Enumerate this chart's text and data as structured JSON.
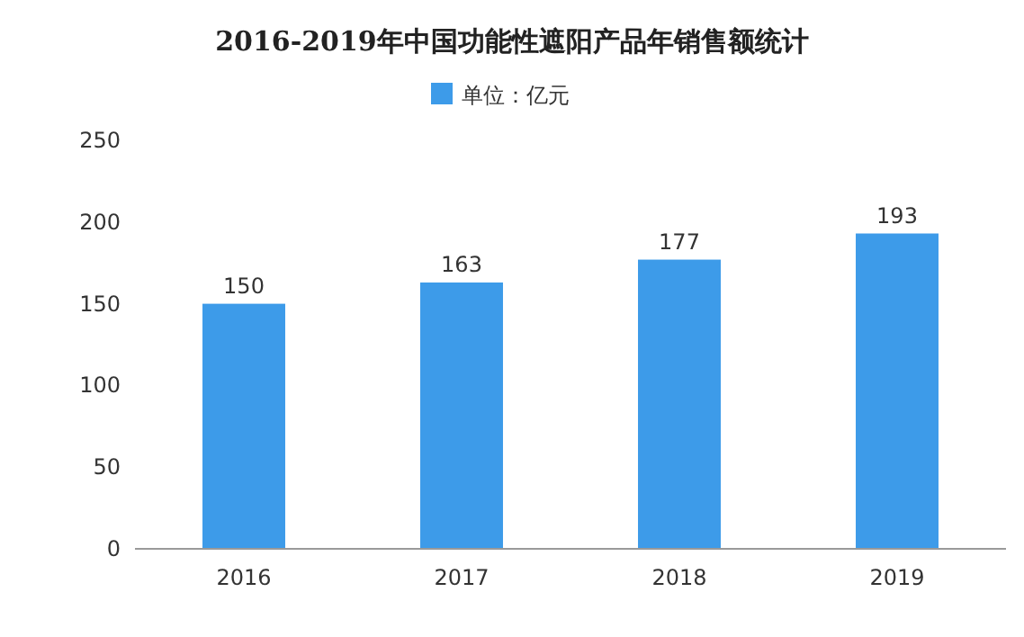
{
  "chart_data": {
    "type": "bar",
    "title": "2016-2019年中国功能性遮阳产品年销售额统计",
    "categories": [
      "2016",
      "2017",
      "2018",
      "2019"
    ],
    "series": [
      {
        "name": "单位：亿元",
        "color": "#3d9be9",
        "values": [
          150,
          163,
          177,
          193
        ]
      }
    ],
    "ylim": [
      0,
      250
    ],
    "yticks": [
      0,
      50,
      100,
      150,
      200,
      250
    ],
    "grid": false,
    "legend": "top",
    "data_labels": true
  }
}
